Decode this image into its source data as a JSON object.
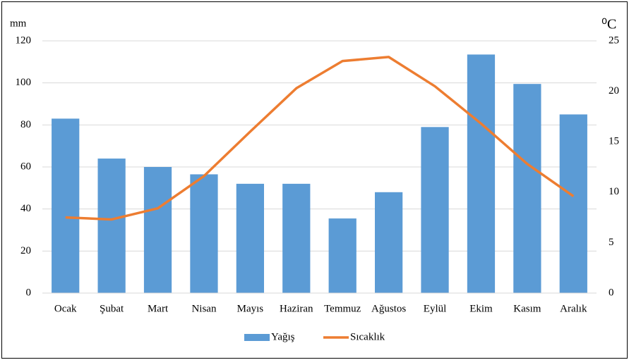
{
  "chart_data": {
    "type": "bar",
    "y_label": "mm",
    "y2_label": "⁰C",
    "categories": [
      "Ocak",
      "Şubat",
      "Mart",
      "Nisan",
      "Mayıs",
      "Haziran",
      "Temmuz",
      "Ağustos",
      "Eylül",
      "Ekim",
      "Kasım",
      "Aralık"
    ],
    "series": [
      {
        "name": "Yağış",
        "type": "bar",
        "color": "#5b9bd5",
        "values": [
          83,
          64,
          60,
          56.5,
          52,
          52,
          35.5,
          48,
          79,
          113.5,
          99.5,
          85
        ]
      },
      {
        "name": "Sıcaklık",
        "type": "line",
        "axis": "y2",
        "color": "#ed7d31",
        "values": [
          7.5,
          7.3,
          8.4,
          11.6,
          16.0,
          20.3,
          23.0,
          23.4,
          20.5,
          16.8,
          12.8,
          9.6
        ]
      }
    ],
    "ylim": [
      0,
      120
    ],
    "yticks": [
      0,
      20,
      40,
      60,
      80,
      100,
      120
    ],
    "y2lim": [
      0,
      25
    ],
    "y2ticks": [
      0,
      5,
      10,
      15,
      20,
      25
    ],
    "grid": true,
    "legend": "bottom"
  }
}
